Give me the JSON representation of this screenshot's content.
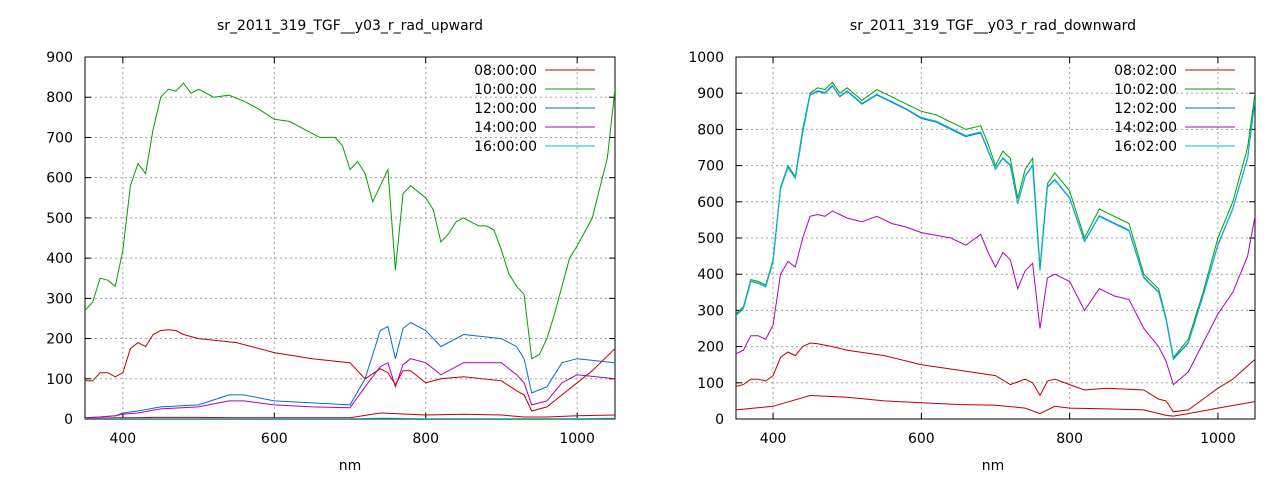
{
  "chart_data": [
    {
      "type": "line",
      "title": "sr_2011_319_TGF__y03_r_rad_upward",
      "xlabel": "nm",
      "ylabel": "",
      "xlim": [
        350,
        1050
      ],
      "ylim": [
        0,
        900
      ],
      "xticks": [
        400,
        600,
        800,
        1000
      ],
      "yticks": [
        0,
        100,
        200,
        300,
        400,
        500,
        600,
        700,
        800,
        900
      ],
      "grid": true,
      "legend_position": "top-right",
      "series": [
        {
          "name": "08:00:00",
          "color": "#c00000",
          "x": [
            350,
            370,
            390,
            400,
            410,
            420,
            440,
            460,
            480,
            500,
            550,
            600,
            650,
            700,
            740,
            800,
            850,
            900,
            930,
            960,
            1000,
            1050
          ],
          "y": [
            2,
            2,
            3,
            3,
            3,
            3,
            4,
            4,
            4,
            4,
            3,
            3,
            3,
            3,
            15,
            10,
            12,
            10,
            5,
            5,
            8,
            10
          ]
        },
        {
          "name": "10:00:00",
          "color": "#00a000",
          "x": [
            350,
            360,
            370,
            380,
            390,
            400,
            410,
            420,
            430,
            440,
            450,
            460,
            470,
            480,
            490,
            500,
            520,
            540,
            560,
            580,
            600,
            620,
            640,
            660,
            680,
            690,
            700,
            710,
            720,
            730,
            740,
            750,
            760,
            770,
            780,
            800,
            810,
            820,
            830,
            840,
            850,
            860,
            870,
            880,
            890,
            900,
            910,
            920,
            930,
            940,
            950,
            960,
            970,
            980,
            990,
            1000,
            1020,
            1040,
            1050
          ],
          "y": [
            270,
            290,
            350,
            345,
            330,
            420,
            580,
            635,
            610,
            720,
            800,
            820,
            815,
            835,
            810,
            820,
            800,
            805,
            790,
            770,
            745,
            740,
            720,
            700,
            700,
            680,
            620,
            640,
            610,
            540,
            580,
            620,
            370,
            560,
            580,
            550,
            520,
            440,
            460,
            490,
            500,
            490,
            480,
            480,
            470,
            420,
            360,
            330,
            310,
            150,
            160,
            200,
            260,
            330,
            400,
            430,
            500,
            650,
            820
          ]
        },
        {
          "name": "12:00:00",
          "color": "#0070d0",
          "x": [
            350,
            370,
            390,
            400,
            420,
            450,
            500,
            540,
            560,
            600,
            650,
            700,
            720,
            740,
            750,
            760,
            770,
            780,
            800,
            820,
            850,
            900,
            920,
            930,
            940,
            960,
            980,
            1000,
            1050
          ],
          "y": [
            3,
            5,
            8,
            15,
            20,
            30,
            35,
            60,
            60,
            45,
            40,
            35,
            100,
            220,
            230,
            150,
            225,
            240,
            220,
            180,
            210,
            200,
            180,
            150,
            65,
            80,
            140,
            150,
            140
          ]
        },
        {
          "name": "14:00:00",
          "color": "#b000c0",
          "x": [
            350,
            370,
            390,
            400,
            420,
            450,
            500,
            540,
            560,
            600,
            650,
            700,
            720,
            740,
            750,
            760,
            770,
            780,
            800,
            820,
            850,
            900,
            920,
            930,
            940,
            960,
            980,
            1000,
            1050
          ],
          "y": [
            3,
            5,
            8,
            12,
            15,
            25,
            30,
            45,
            45,
            35,
            30,
            28,
            80,
            130,
            140,
            80,
            135,
            150,
            140,
            110,
            140,
            140,
            110,
            90,
            35,
            45,
            90,
            110,
            100
          ]
        },
        {
          "name": "16:00:00",
          "color": "#00b8d8",
          "x": [
            350,
            400,
            450,
            500,
            550,
            600,
            650,
            700,
            750,
            800,
            850,
            900,
            950,
            1000,
            1050
          ],
          "y": [
            0,
            1,
            1,
            1,
            1,
            1,
            1,
            1,
            2,
            1,
            1,
            1,
            1,
            1,
            2
          ]
        },
        {
          "name": "",
          "color": "#c00000",
          "x": [
            350,
            360,
            370,
            380,
            390,
            400,
            410,
            420,
            430,
            440,
            450,
            460,
            470,
            480,
            500,
            550,
            600,
            650,
            700,
            720,
            740,
            750,
            760,
            770,
            780,
            800,
            820,
            850,
            900,
            920,
            930,
            940,
            960,
            980,
            1000,
            1020,
            1050
          ],
          "y": [
            95,
            95,
            115,
            115,
            105,
            115,
            175,
            190,
            180,
            210,
            220,
            222,
            220,
            210,
            200,
            190,
            165,
            150,
            140,
            100,
            125,
            115,
            85,
            120,
            120,
            90,
            100,
            105,
            95,
            70,
            60,
            20,
            30,
            60,
            90,
            120,
            175
          ]
        }
      ]
    },
    {
      "type": "line",
      "title": "sr_2011_319_TGF__y03_r_rad_downward",
      "xlabel": "nm",
      "ylabel": "",
      "xlim": [
        350,
        1050
      ],
      "ylim": [
        0,
        1000
      ],
      "xticks": [
        400,
        600,
        800,
        1000
      ],
      "yticks": [
        0,
        100,
        200,
        300,
        400,
        500,
        600,
        700,
        800,
        900,
        1000
      ],
      "grid": true,
      "legend_position": "top-right",
      "series": [
        {
          "name": "08:02:00",
          "color": "#c00000",
          "x": [
            350,
            360,
            370,
            380,
            390,
            400,
            410,
            420,
            430,
            440,
            450,
            460,
            480,
            500,
            550,
            600,
            650,
            700,
            720,
            740,
            750,
            760,
            770,
            780,
            800,
            820,
            850,
            900,
            920,
            930,
            940,
            960,
            980,
            1000,
            1020,
            1050
          ],
          "y": [
            90,
            95,
            110,
            110,
            105,
            120,
            170,
            185,
            175,
            200,
            210,
            208,
            200,
            190,
            175,
            150,
            135,
            120,
            95,
            110,
            100,
            65,
            105,
            110,
            95,
            80,
            85,
            80,
            55,
            50,
            20,
            25,
            55,
            85,
            110,
            165
          ]
        },
        {
          "name": "10:02:00",
          "color": "#00a000",
          "x": [
            350,
            360,
            370,
            380,
            390,
            400,
            410,
            420,
            430,
            440,
            450,
            460,
            470,
            480,
            490,
            500,
            520,
            540,
            560,
            580,
            600,
            620,
            640,
            660,
            680,
            690,
            700,
            710,
            720,
            730,
            740,
            750,
            760,
            770,
            780,
            800,
            820,
            840,
            860,
            880,
            900,
            920,
            930,
            940,
            960,
            980,
            1000,
            1020,
            1040,
            1050
          ],
          "y": [
            290,
            310,
            385,
            380,
            370,
            440,
            640,
            700,
            670,
            800,
            900,
            915,
            910,
            930,
            900,
            915,
            880,
            910,
            890,
            870,
            850,
            840,
            820,
            800,
            810,
            760,
            700,
            740,
            720,
            610,
            690,
            720,
            420,
            650,
            680,
            630,
            500,
            580,
            560,
            540,
            400,
            360,
            280,
            170,
            220,
            350,
            500,
            600,
            750,
            900
          ]
        },
        {
          "name": "12:02:00",
          "color": "#0070d0",
          "x": [
            350,
            360,
            370,
            380,
            390,
            400,
            410,
            420,
            430,
            440,
            450,
            460,
            470,
            480,
            490,
            500,
            520,
            540,
            560,
            580,
            600,
            620,
            640,
            660,
            680,
            690,
            700,
            710,
            720,
            730,
            740,
            750,
            760,
            770,
            780,
            800,
            820,
            840,
            860,
            880,
            900,
            920,
            930,
            940,
            960,
            980,
            1000,
            1020,
            1040,
            1050
          ],
          "y": [
            285,
            305,
            380,
            375,
            365,
            435,
            635,
            695,
            665,
            790,
            895,
            905,
            900,
            920,
            890,
            905,
            870,
            895,
            875,
            855,
            830,
            820,
            800,
            780,
            790,
            740,
            690,
            720,
            700,
            595,
            670,
            700,
            410,
            640,
            660,
            610,
            490,
            560,
            540,
            520,
            390,
            350,
            275,
            165,
            210,
            340,
            480,
            580,
            720,
            880
          ]
        },
        {
          "name": "14:02:00",
          "color": "#b000c0",
          "x": [
            350,
            360,
            370,
            380,
            390,
            400,
            410,
            420,
            430,
            440,
            450,
            460,
            470,
            480,
            500,
            520,
            540,
            560,
            580,
            600,
            640,
            660,
            680,
            690,
            700,
            710,
            720,
            730,
            740,
            750,
            760,
            770,
            780,
            800,
            820,
            840,
            860,
            880,
            900,
            920,
            930,
            940,
            960,
            980,
            1000,
            1020,
            1040,
            1050
          ],
          "y": [
            180,
            190,
            230,
            230,
            220,
            260,
            400,
            435,
            420,
            500,
            560,
            565,
            560,
            575,
            555,
            545,
            560,
            540,
            530,
            515,
            500,
            480,
            510,
            460,
            420,
            460,
            440,
            360,
            410,
            430,
            250,
            390,
            400,
            380,
            300,
            360,
            340,
            330,
            250,
            200,
            160,
            95,
            130,
            210,
            290,
            350,
            450,
            560
          ]
        },
        {
          "name": "16:02:00",
          "color": "#00b8d8",
          "x": [
            350,
            360,
            370,
            380,
            390,
            400,
            410,
            420,
            430,
            440,
            450,
            460,
            470,
            480,
            490,
            500,
            520,
            540,
            560,
            580,
            600,
            620,
            640,
            660,
            680,
            690,
            700,
            710,
            720,
            730,
            740,
            750,
            760,
            770,
            780,
            800,
            820,
            840,
            860,
            880,
            900,
            920,
            930,
            940,
            960,
            980,
            1000,
            1020,
            1040,
            1050
          ],
          "y": [
            286,
            306,
            381,
            376,
            366,
            436,
            636,
            696,
            666,
            792,
            896,
            907,
            902,
            922,
            892,
            907,
            872,
            897,
            877,
            857,
            833,
            823,
            803,
            783,
            793,
            743,
            692,
            722,
            702,
            597,
            672,
            702,
            412,
            642,
            662,
            612,
            492,
            562,
            542,
            522,
            392,
            352,
            277,
            167,
            212,
            342,
            482,
            582,
            722,
            882
          ]
        },
        {
          "name": "",
          "color": "#c00000",
          "x": [
            350,
            400,
            450,
            500,
            550,
            600,
            650,
            700,
            740,
            760,
            780,
            800,
            850,
            900,
            930,
            940,
            960,
            1000,
            1050
          ],
          "y": [
            25,
            35,
            65,
            60,
            50,
            45,
            40,
            38,
            30,
            15,
            35,
            30,
            28,
            25,
            10,
            8,
            15,
            30,
            48
          ]
        }
      ]
    }
  ]
}
